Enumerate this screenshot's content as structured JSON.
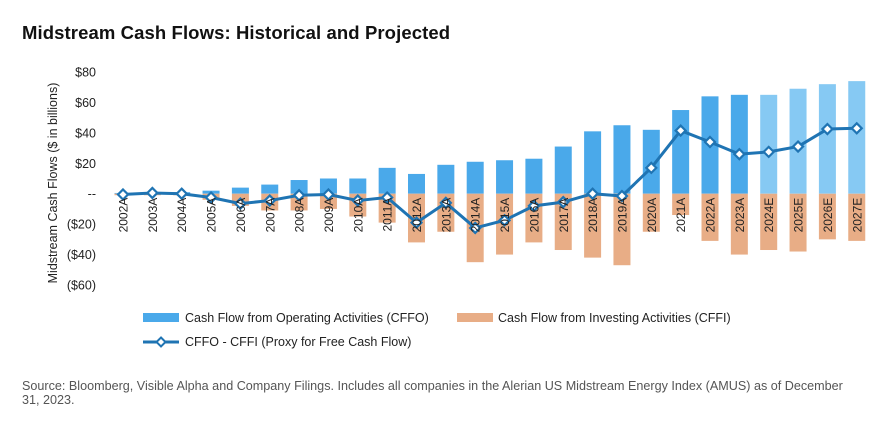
{
  "chart_data": {
    "type": "bar",
    "title": "Midstream Cash Flows: Historical and Projected",
    "ylabel": "Midstream Cash Flows ($ in billions)",
    "ylim": [
      -60,
      80
    ],
    "yticks": [
      80,
      60,
      40,
      20,
      0,
      -20,
      -40,
      -60
    ],
    "ytick_labels": [
      "$80",
      "$60",
      "$40",
      "$20",
      "--",
      "($20)",
      "($40)",
      "($60)"
    ],
    "grid": false,
    "legend_position": "bottom",
    "categories": [
      "2002A",
      "2003A",
      "2004A",
      "2005A",
      "2006A",
      "2007A",
      "2008A",
      "2009A",
      "2010A",
      "2011A",
      "2012A",
      "2013A",
      "2014A",
      "2015A",
      "2016A",
      "2017A",
      "2018A",
      "2019A",
      "2020A",
      "2021A",
      "2022A",
      "2023A",
      "2024E",
      "2025E",
      "2026E",
      "2027E"
    ],
    "series": [
      {
        "name": "Cash Flow from Operating Activities (CFFO)",
        "type": "bar",
        "values": [
          0.5,
          1,
          1,
          2,
          4,
          6,
          9,
          10,
          10,
          17,
          13,
          19,
          21,
          22,
          23,
          31,
          41,
          45,
          42,
          55,
          64,
          65,
          65,
          69,
          72,
          74
        ]
      },
      {
        "name": "Cash Flow from Investing Activities (CFFI)",
        "type": "bar",
        "values": [
          -1,
          -1,
          -1,
          -4,
          -8,
          -11,
          -11,
          -10,
          -15,
          -19,
          -32,
          -25,
          -45,
          -40,
          -32,
          -37,
          -42,
          -47,
          -25,
          -14,
          -31,
          -40,
          -37,
          -38,
          -30,
          -31
        ]
      },
      {
        "name": "CFFO - CFFI (Proxy for Free Cash Flow)",
        "type": "line",
        "values": [
          -0.5,
          0.5,
          0,
          -2.5,
          -6.5,
          -4.5,
          -1,
          -0.5,
          -4.5,
          -2.5,
          -19,
          -6,
          -22.5,
          -17.5,
          -8,
          -5.5,
          0,
          -1.5,
          17,
          41.5,
          34,
          26,
          27.5,
          31,
          42.5,
          43
        ]
      }
    ],
    "colors": {
      "cffo_historical": "#4aa9ea",
      "cffo_projected": "#86c9f3",
      "cffi": "#e8ad86",
      "line": "#1f74b3",
      "marker_fill": "#ffffff"
    }
  },
  "legend": {
    "cffo": "Cash Flow from Operating Activities (CFFO)",
    "cffi": "Cash Flow from Investing Activities (CFFI)",
    "line": "CFFO - CFFI (Proxy for Free Cash Flow)"
  },
  "source_note": "Source: Bloomberg, Visible Alpha and Company Filings. Includes all companies in the Alerian US Midstream Energy Index (AMUS) as of December 31, 2023."
}
